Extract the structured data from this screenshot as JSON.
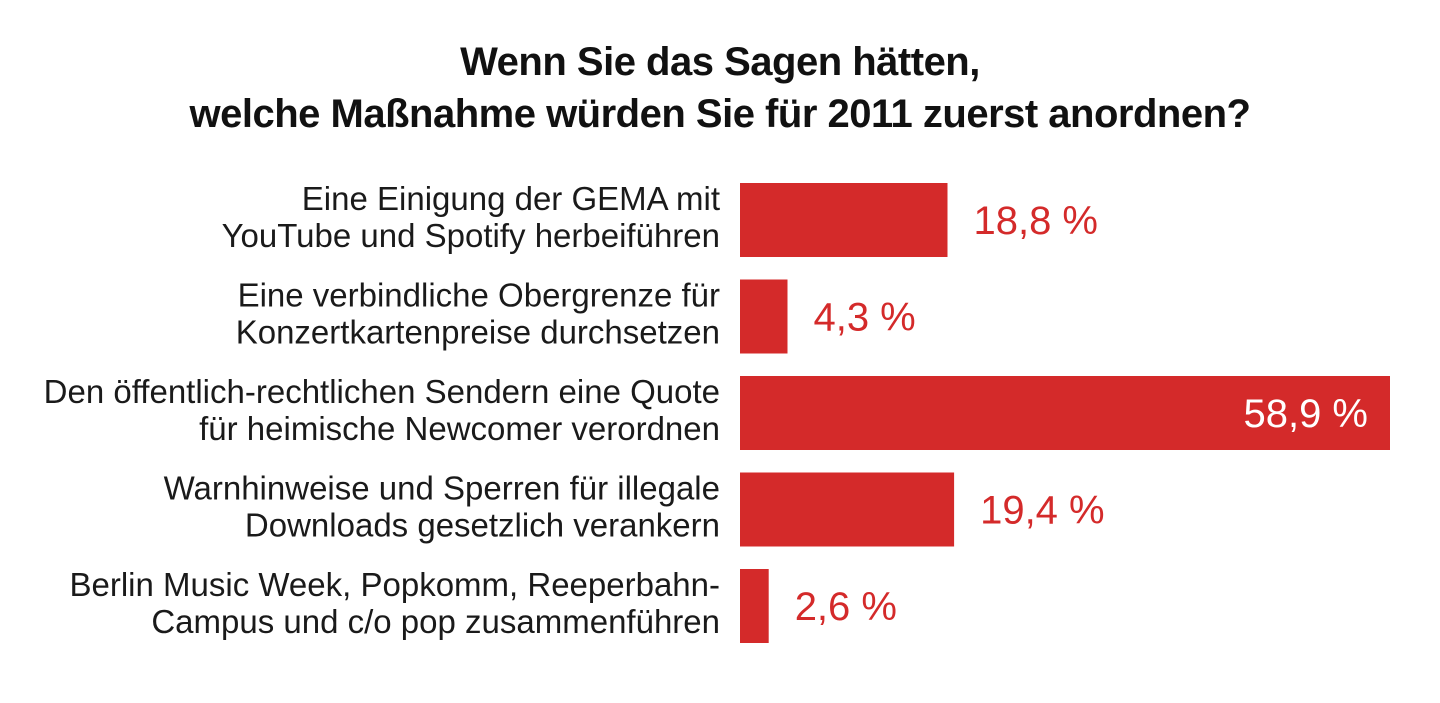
{
  "title": {
    "line1": "Wenn Sie das Sagen hätten,",
    "line2": "welche Maßnahme würden Sie für 2011 zuerst anordnen?"
  },
  "colors": {
    "bar": "#d42a2a",
    "value_text": "#d42a2a",
    "value_text_inside": "#ffffff",
    "label_text": "#1a1a1a"
  },
  "chart_data": {
    "type": "bar",
    "orientation": "horizontal",
    "title": "Wenn Sie das Sagen hätten, welche Maßnahme würden Sie für 2011 zuerst anordnen?",
    "categories": [
      [
        "Eine Einigung der GEMA mit",
        "YouTube und Spotify herbeiführen"
      ],
      [
        "Eine verbindliche Obergrenze für",
        "Konzertkartenpreise durchsetzen"
      ],
      [
        "Den öffentlich-rechtlichen Sendern eine Quote",
        "für heimische Newcomer verordnen"
      ],
      [
        "Warnhinweise und Sperren für illegale",
        "Downloads gesetzlich verankern"
      ],
      [
        "Berlin Music Week, Popkomm, Reeperbahn-",
        "Campus und c/o pop zusammenführen"
      ]
    ],
    "values": [
      18.8,
      4.3,
      58.9,
      19.4,
      2.6
    ],
    "value_labels": [
      "18,8 %",
      "4,3 %",
      "58,9 %",
      "19,4 %",
      "2,6 %"
    ],
    "unit": "%",
    "xlim": [
      0,
      58.9
    ],
    "grid": false,
    "legend": "none"
  }
}
